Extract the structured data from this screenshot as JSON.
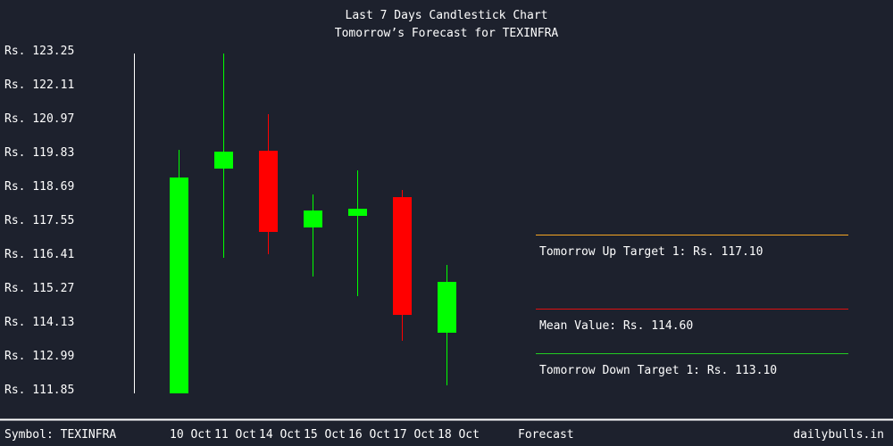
{
  "header": {
    "title": "Last 7 Days Candlestick Chart",
    "subtitle": "Tomorrow’s Forecast for TEXINFRA"
  },
  "footer": {
    "symbol": "Symbol: TEXINFRA",
    "forecast_label": "Forecast",
    "brand": "dailybulls.in"
  },
  "colors": {
    "background": "#1d212d",
    "up": "#00ff00",
    "down": "#ff0000",
    "up_target_line": "#f5a623",
    "mean_line": "#e01010",
    "down_target_line": "#22cc22",
    "axis": "#ffffff"
  },
  "forecast": {
    "up_target": "Tomorrow Up Target 1: Rs. 117.10",
    "mean": "Mean Value: Rs. 114.60",
    "down_target": "Tomorrow Down Target 1: Rs. 113.10"
  },
  "chart_data": {
    "type": "candlestick",
    "title": "Last 7 Days Candlestick Chart",
    "subtitle": "Tomorrow's Forecast for TEXINFRA",
    "xlabel": "",
    "ylabel": "",
    "y_ticks": [
      "Rs. 123.25",
      "Rs. 122.11",
      "Rs. 120.97",
      "Rs. 119.83",
      "Rs. 118.69",
      "Rs. 117.55",
      "Rs. 116.41",
      "Rs. 115.27",
      "Rs. 114.13",
      "Rs. 112.99",
      "Rs. 111.85"
    ],
    "ylim": [
      111.85,
      123.25
    ],
    "categories": [
      "10 Oct",
      "11 Oct",
      "14 Oct",
      "15 Oct",
      "16 Oct",
      "17 Oct",
      "18 Oct"
    ],
    "series": [
      {
        "name": "open",
        "values": [
          111.76,
          119.32,
          119.92,
          117.34,
          117.73,
          118.36,
          113.8
        ]
      },
      {
        "name": "high",
        "values": [
          119.95,
          123.19,
          121.15,
          118.45,
          119.26,
          118.6,
          116.08
        ]
      },
      {
        "name": "low",
        "values": [
          111.76,
          116.32,
          116.44,
          115.69,
          115.03,
          113.53,
          112.03
        ]
      },
      {
        "name": "close",
        "values": [
          119.02,
          119.89,
          117.19,
          117.91,
          117.97,
          114.4,
          115.51
        ]
      }
    ],
    "forecast_lines": [
      {
        "label": "Tomorrow Up Target 1",
        "value": 117.1,
        "color": "#f5a623"
      },
      {
        "label": "Mean Value",
        "value": 114.6,
        "color": "#e01010"
      },
      {
        "label": "Tomorrow Down Target 1",
        "value": 113.1,
        "color": "#22cc22"
      }
    ],
    "grid": false,
    "legend": "none"
  }
}
